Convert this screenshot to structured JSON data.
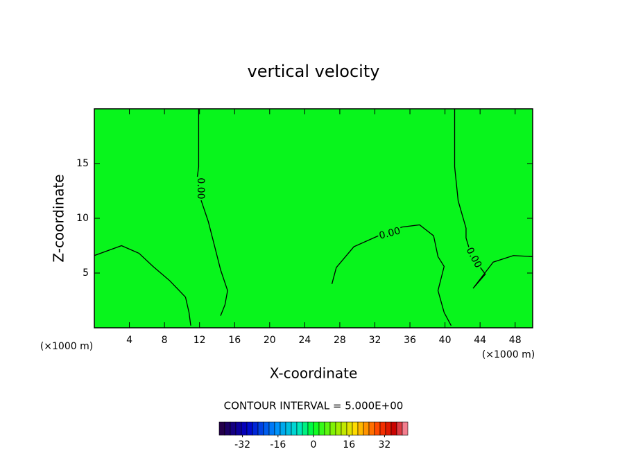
{
  "chart_data": {
    "type": "contour",
    "title": "vertical velocity",
    "x_label": "X-coordinate",
    "y_label": "Z-coordinate",
    "x_unit_label": "(×1000 m)",
    "y_unit_label": "(×1000 m)",
    "xlim": [
      0,
      50
    ],
    "ylim": [
      0,
      20
    ],
    "xticks": [
      4,
      8,
      12,
      16,
      20,
      24,
      28,
      32,
      36,
      40,
      44,
      48
    ],
    "yticks": [
      5,
      10,
      15
    ],
    "field_color": "#08f51c",
    "contours": [
      {
        "level": 0,
        "label": "0.00",
        "x": [
          0,
          3.1,
          5.1,
          6.7,
          8.6,
          10.4,
          10.8,
          11.0
        ],
        "y": [
          6.6,
          7.5,
          6.8,
          5.6,
          4.3,
          2.8,
          1.4,
          0.2
        ]
      },
      {
        "level": 0,
        "label": "0.00",
        "x": [
          11.9,
          11.9,
          11.7,
          12.2,
          13.0,
          13.8,
          14.4,
          15.2,
          14.9,
          14.4
        ],
        "y": [
          20,
          14.7,
          13.5,
          11.6,
          9.7,
          7.2,
          5.3,
          3.4,
          2.1,
          1.1
        ]
      },
      {
        "level": 0,
        "label": "0.00",
        "x": [
          27.1,
          27.6,
          29.6,
          32.4,
          35.1,
          37.1,
          38.7,
          39.2,
          39.9,
          39.2,
          39.9,
          40.7
        ],
        "y": [
          4.0,
          5.5,
          7.4,
          8.4,
          9.2,
          9.4,
          8.4,
          6.5,
          5.6,
          3.4,
          1.4,
          0.2
        ]
      },
      {
        "level": 0,
        "label": "0.00",
        "x": [
          41.1,
          41.1,
          41.5,
          42.4,
          42.4,
          43.0,
          44.6,
          43.2,
          45.5,
          47.8,
          50
        ],
        "y": [
          20,
          14.7,
          11.6,
          9.1,
          8.2,
          6.6,
          4.9,
          3.6,
          6.0,
          6.6,
          6.5
        ]
      }
    ],
    "interval_label": "CONTOUR INTERVAL = 5.000E+00",
    "colorbar": {
      "lim": [
        -42.5,
        42.5
      ],
      "ticks": [
        -32,
        -16,
        0,
        16,
        32
      ]
    }
  }
}
